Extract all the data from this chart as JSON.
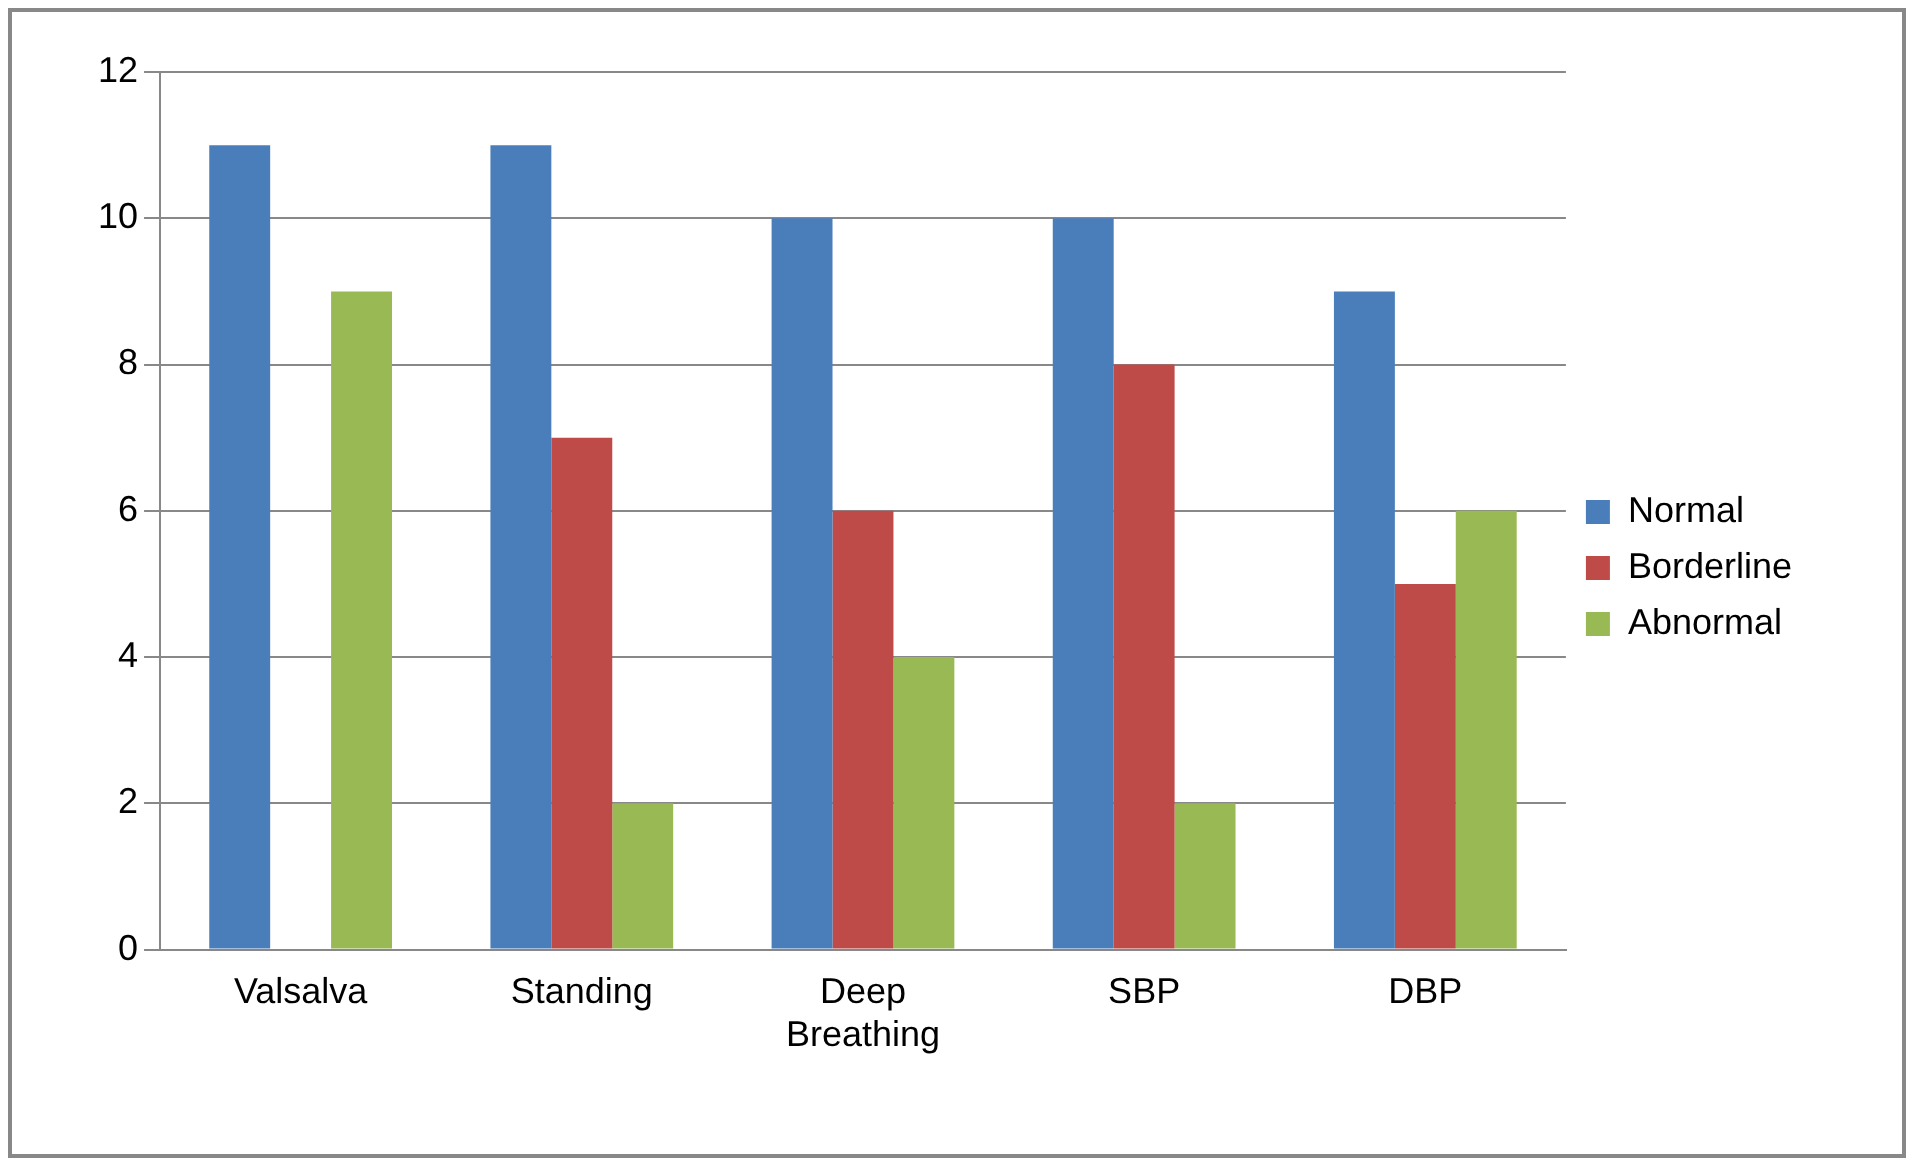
{
  "chart_data": {
    "type": "bar",
    "categories": [
      "Valsalva",
      "Standing",
      "Deep Breathing",
      "SBP",
      "DBP"
    ],
    "series": [
      {
        "name": "Normal",
        "color": "#4a7ebb",
        "values": [
          11,
          11,
          10,
          10,
          9
        ]
      },
      {
        "name": "Borderline",
        "color": "#be4b48",
        "values": [
          0,
          7,
          6,
          8,
          5
        ]
      },
      {
        "name": "Abnormal",
        "color": "#98b954",
        "values": [
          9,
          2,
          4,
          2,
          6
        ]
      }
    ],
    "ylim": [
      0,
      12
    ],
    "yticks": [
      0,
      2,
      4,
      6,
      8,
      10,
      12
    ],
    "grid": "y",
    "legend": "right"
  }
}
